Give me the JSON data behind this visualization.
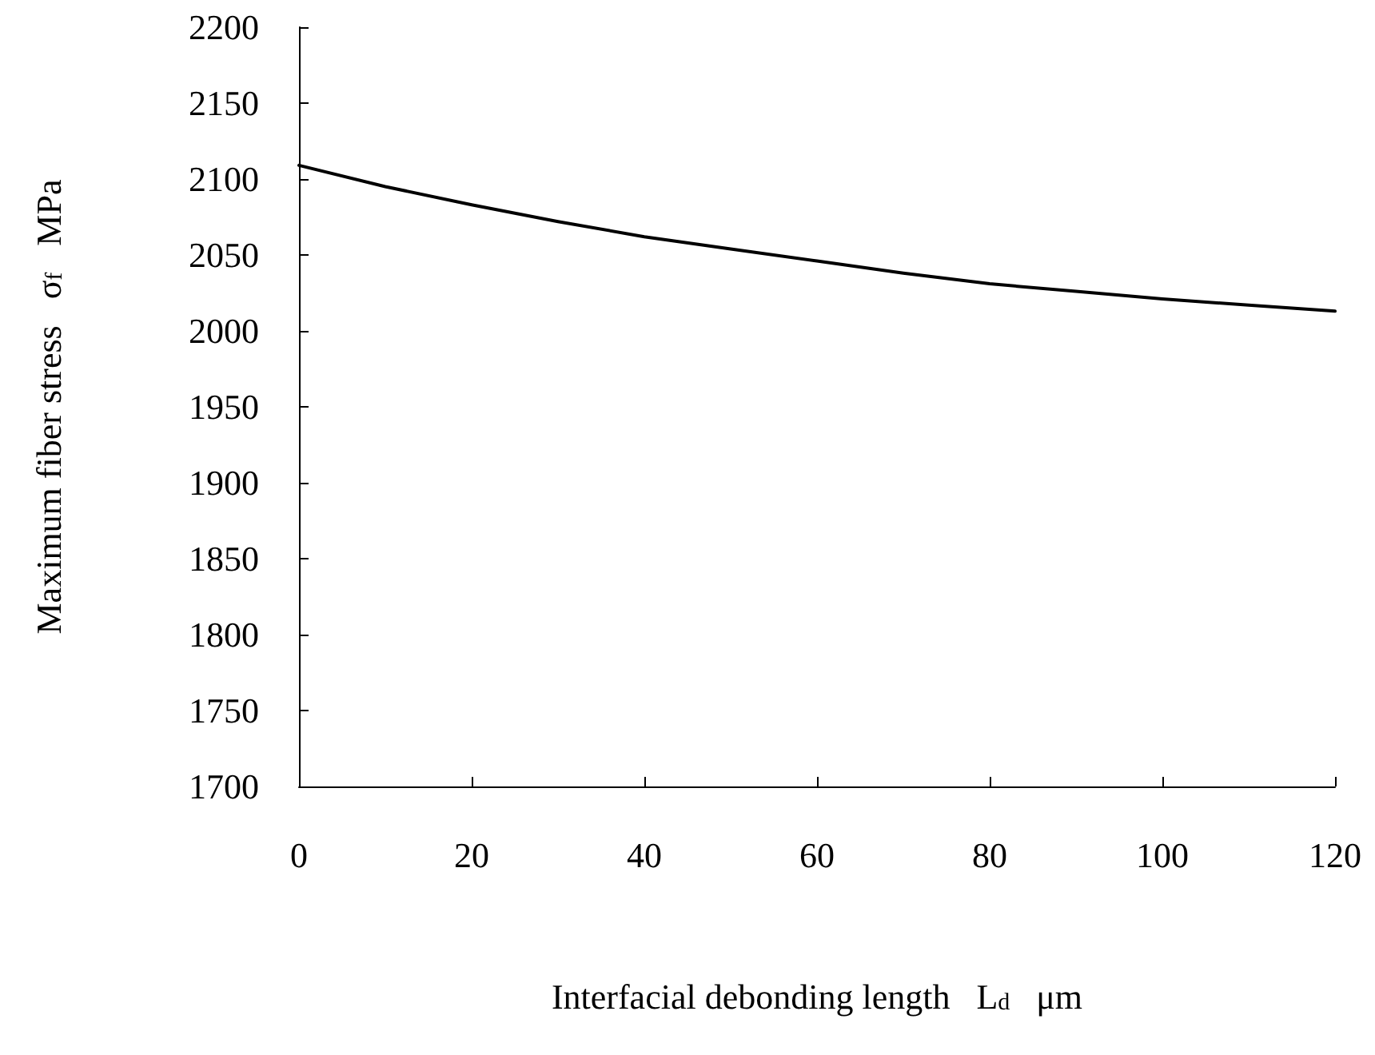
{
  "chart_data": {
    "type": "line",
    "xlabel": "Interfacial debonding length   L$_{d}$   μm",
    "ylabel": "Maximum fiber stress   σ$_{f}$   MPa",
    "x": [
      0,
      10,
      20,
      30,
      40,
      50,
      60,
      70,
      80,
      90,
      100,
      110,
      120
    ],
    "series": [
      {
        "color": "#000000",
        "values": [
          2109,
          2095,
          2083,
          2072,
          2062,
          2054,
          2046,
          2038,
          2031,
          2026,
          2021,
          2017,
          2013
        ]
      }
    ],
    "xlim": [
      0,
      120
    ],
    "xticks": [
      0,
      20,
      40,
      60,
      80,
      100,
      120
    ],
    "ylim": [
      1700,
      2200
    ],
    "yticks": [
      1700,
      1750,
      1800,
      1850,
      1900,
      1950,
      2000,
      2050,
      2100,
      2150,
      2200
    ],
    "grid": false,
    "marker": "none",
    "line_style": "solid"
  }
}
